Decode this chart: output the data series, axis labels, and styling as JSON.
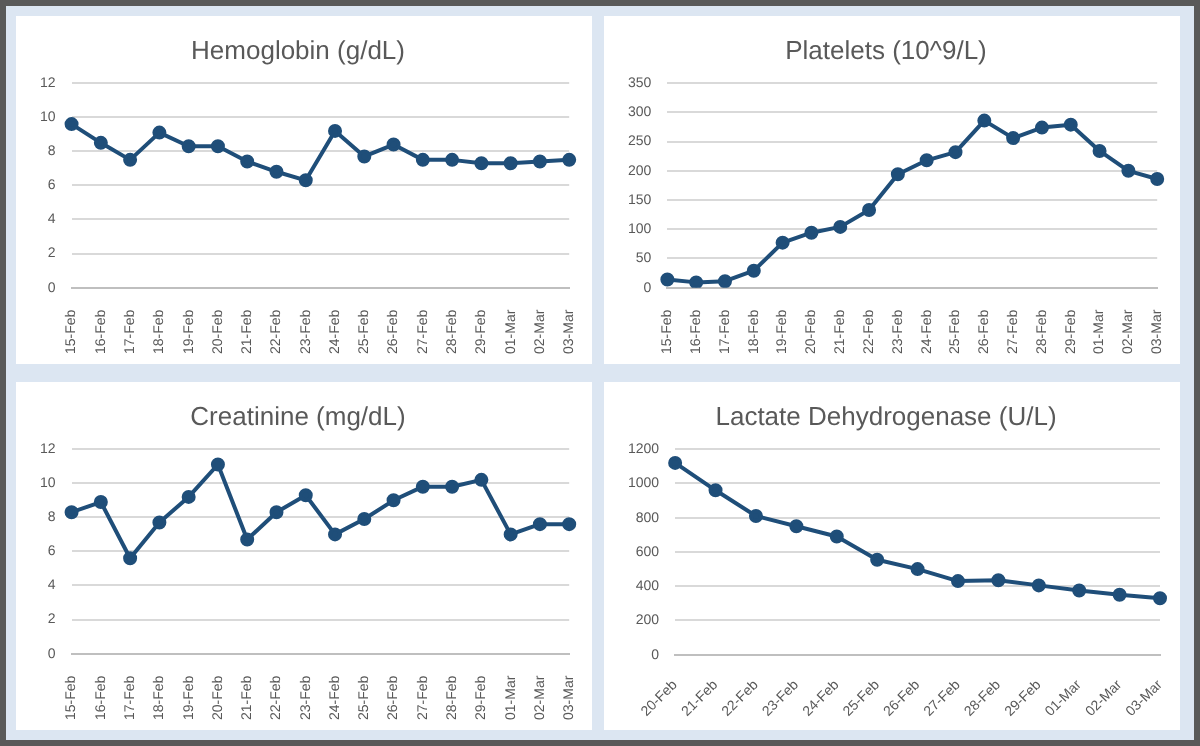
{
  "chart_data": [
    {
      "type": "line",
      "title": "Hemoglobin (g/dL)",
      "categories": [
        "15-Feb",
        "16-Feb",
        "17-Feb",
        "18-Feb",
        "19-Feb",
        "20-Feb",
        "21-Feb",
        "22-Feb",
        "23-Feb",
        "24-Feb",
        "25-Feb",
        "26-Feb",
        "27-Feb",
        "28-Feb",
        "29-Feb",
        "01-Mar",
        "02-Mar",
        "03-Mar"
      ],
      "values": [
        9.6,
        8.5,
        7.5,
        9.1,
        8.3,
        8.3,
        7.4,
        6.8,
        6.3,
        9.2,
        7.7,
        8.4,
        7.5,
        7.5,
        7.3,
        7.3,
        7.4,
        7.5
      ],
      "color": "#1f4e79",
      "ylim": [
        0,
        12
      ],
      "yticks": [
        0,
        2,
        4,
        6,
        8,
        10,
        12
      ],
      "grid": "y",
      "marker": "circle"
    },
    {
      "type": "line",
      "title": "Platelets (10^9/L)",
      "categories": [
        "15-Feb",
        "16-Feb",
        "17-Feb",
        "18-Feb",
        "19-Feb",
        "20-Feb",
        "21-Feb",
        "22-Feb",
        "23-Feb",
        "24-Feb",
        "25-Feb",
        "26-Feb",
        "27-Feb",
        "28-Feb",
        "29-Feb",
        "01-Mar",
        "02-Mar",
        "03-Mar"
      ],
      "values": [
        14,
        9,
        11,
        29,
        77,
        94,
        104,
        133,
        194,
        218,
        232,
        286,
        256,
        274,
        279,
        234,
        200,
        186
      ],
      "color": "#1f4e79",
      "ylim": [
        0,
        350
      ],
      "yticks": [
        0,
        50,
        100,
        150,
        200,
        250,
        300,
        350
      ],
      "grid": "y",
      "marker": "circle"
    },
    {
      "type": "line",
      "title": "Creatinine (mg/dL)",
      "categories": [
        "15-Feb",
        "16-Feb",
        "17-Feb",
        "18-Feb",
        "19-Feb",
        "20-Feb",
        "21-Feb",
        "22-Feb",
        "23-Feb",
        "24-Feb",
        "25-Feb",
        "26-Feb",
        "27-Feb",
        "28-Feb",
        "29-Feb",
        "01-Mar",
        "02-Mar",
        "03-Mar"
      ],
      "values": [
        8.3,
        8.9,
        5.6,
        7.7,
        9.2,
        11.1,
        6.7,
        8.3,
        9.3,
        7.0,
        7.9,
        9.0,
        9.8,
        9.8,
        10.2,
        7.0,
        7.6,
        7.6
      ],
      "color": "#1f4e79",
      "ylim": [
        0,
        12
      ],
      "yticks": [
        0,
        2,
        4,
        6,
        8,
        10,
        12
      ],
      "grid": "y",
      "marker": "circle"
    },
    {
      "type": "line",
      "title": "Lactate Dehydrogenase (U/L)",
      "categories": [
        "20-Feb",
        "21-Feb",
        "22-Feb",
        "23-Feb",
        "24-Feb",
        "25-Feb",
        "26-Feb",
        "27-Feb",
        "28-Feb",
        "29-Feb",
        "01-Mar",
        "02-Mar",
        "03-Mar"
      ],
      "values": [
        1120,
        960,
        810,
        750,
        690,
        555,
        500,
        430,
        435,
        405,
        375,
        350,
        330
      ],
      "color": "#1f4e79",
      "ylim": [
        0,
        1200
      ],
      "yticks": [
        0,
        200,
        400,
        600,
        800,
        1000,
        1200
      ],
      "grid": "y",
      "marker": "circle"
    }
  ]
}
